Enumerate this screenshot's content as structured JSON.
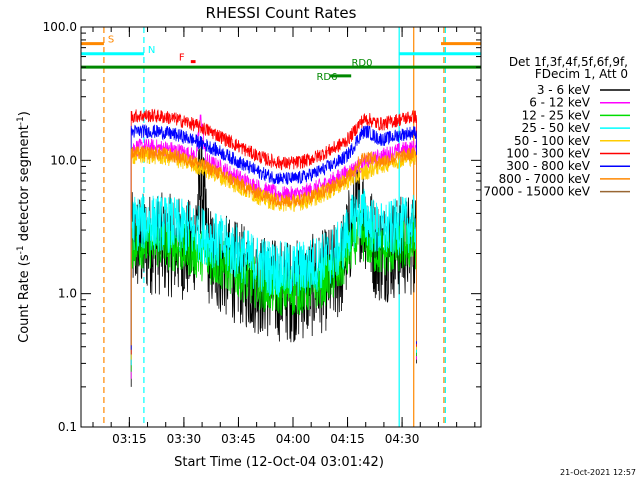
{
  "chart_data": {
    "type": "line",
    "title": "RHESSI Count Rates",
    "xlabel": "Start Time (12-Oct-04 03:01:42)",
    "ylabel_parts": [
      "Count Rate (s",
      "-1",
      " detector segment",
      "-1",
      ")"
    ],
    "yscale": "log",
    "ylim": [
      0.1,
      100.0
    ],
    "xlim_minutes": [
      0,
      110
    ],
    "y_ticks": [
      {
        "value": 0.1,
        "label": "0.1"
      },
      {
        "value": 1.0,
        "label": "1.0"
      },
      {
        "value": 10.0,
        "label": "10.0"
      },
      {
        "value": 100.0,
        "label": "100.0"
      }
    ],
    "x_ticks": [
      {
        "minute": 13.3,
        "label": "03:15"
      },
      {
        "minute": 28.3,
        "label": "03:30"
      },
      {
        "minute": 43.3,
        "label": "03:45"
      },
      {
        "minute": 58.3,
        "label": "04:00"
      },
      {
        "minute": 73.3,
        "label": "04:15"
      },
      {
        "minute": 88.3,
        "label": "04:30"
      }
    ],
    "legend_header": [
      "Det 1f,3f,4f,5f,6f,9f,",
      "FDecim 1, Att 0"
    ],
    "legend_position": "right",
    "series": [
      {
        "name": "3 - 6 keV",
        "color": "#000000",
        "level": 2.1,
        "noise": 0.9,
        "peaks": [
          {
            "t": 33.0,
            "amp": 4.5,
            "w": 1.2
          },
          {
            "t": 76.5,
            "amp": 2.5,
            "w": 3.0
          }
        ]
      },
      {
        "name": "6 - 12 keV",
        "color": "#ff00ff",
        "level": 11.0,
        "noise": 0.15,
        "peaks": [
          {
            "t": 33.0,
            "amp": 10.0,
            "w": 0.8
          }
        ]
      },
      {
        "name": "12 - 25 keV",
        "color": "#00dd00",
        "level": 2.1,
        "noise": 0.45,
        "peaks": [
          {
            "t": 76.5,
            "amp": 1.0,
            "w": 3.5
          }
        ]
      },
      {
        "name": "25 - 50 keV",
        "color": "#00ffff",
        "level": 3.0,
        "noise": 0.5,
        "peaks": [
          {
            "t": 76.5,
            "amp": 1.5,
            "w": 3.5
          }
        ]
      },
      {
        "name": "50 - 100 keV",
        "color": "#ffcc00",
        "level": 9.5,
        "noise": 0.15,
        "peaks": []
      },
      {
        "name": "100 - 300 keV",
        "color": "#ff0000",
        "level": 19.0,
        "noise": 0.12,
        "peaks": [
          {
            "t": 78.0,
            "amp": 4.0,
            "w": 3.0
          }
        ]
      },
      {
        "name": "300 - 800 keV",
        "color": "#0000ff",
        "level": 14.5,
        "noise": 0.12,
        "peaks": [
          {
            "t": 78.0,
            "amp": 4.0,
            "w": 3.0
          }
        ]
      },
      {
        "name": "800 - 7000 keV",
        "color": "#ff8800",
        "level": 10.0,
        "noise": 0.12,
        "peaks": [
          {
            "t": 78.0,
            "amp": 2.0,
            "w": 3.0
          }
        ]
      },
      {
        "name": "7000 - 15000 keV",
        "color": "#996633",
        "level": 0,
        "noise": 0,
        "peaks": []
      }
    ],
    "markers": [
      {
        "label": "S",
        "color": "#ff8800",
        "t0": 0,
        "t1": 6.3,
        "value": 75
      },
      {
        "label": "N",
        "color": "#00ffff",
        "t0": 0,
        "t1": 17.3,
        "value": 63
      },
      {
        "label": "F",
        "color": "#ff0000",
        "t0": 30.2,
        "t1": 31.5,
        "value": 55
      },
      {
        "label": "RD0",
        "color": "#008800",
        "t0": 0,
        "t1": 110,
        "value": 50
      },
      {
        "label": "RD6",
        "color": "#008800",
        "t0": 68.5,
        "t1": 74.3,
        "value": 43
      }
    ],
    "right_markers": [
      {
        "color": "#ff8800",
        "t0": 99,
        "t1": 110,
        "value": 75
      },
      {
        "color": "#00ffff",
        "t0": 87.5,
        "t1": 110,
        "value": 63
      }
    ],
    "vlines": [
      {
        "minute": 6.3,
        "color": "#ff8800",
        "dash": true
      },
      {
        "minute": 17.3,
        "color": "#00ffff",
        "dash": true
      },
      {
        "minute": 87.5,
        "color": "#00ffff",
        "dash": false
      },
      {
        "minute": 91.5,
        "color": "#ff8800",
        "dash": false
      },
      {
        "minute": 99.8,
        "color": "#ff8800",
        "dash": true
      },
      {
        "minute": 100.2,
        "color": "#00ffff",
        "dash": true
      }
    ],
    "data_window_minutes": [
      13.8,
      92.3
    ]
  },
  "footer": {
    "timestamp": "21-Oct-2021 12:57"
  }
}
